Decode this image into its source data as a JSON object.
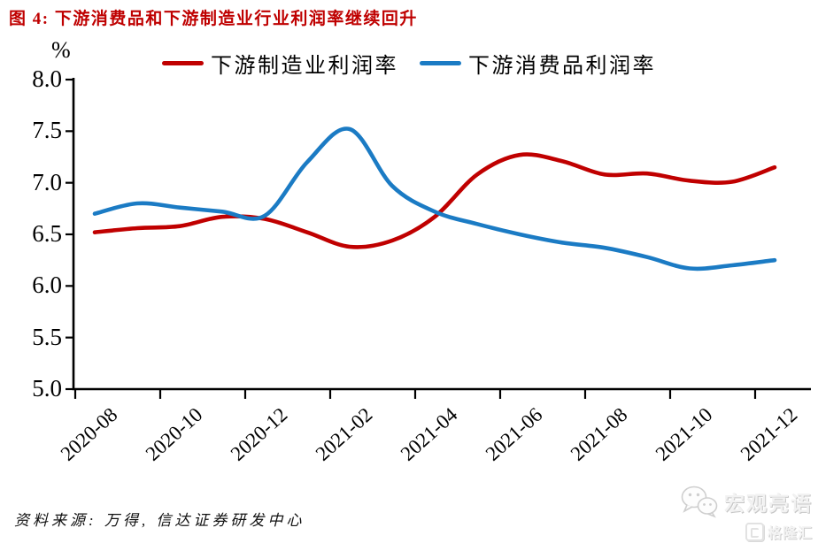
{
  "title": "图 4: 下游消费品和下游制造业行业利润率继续回升",
  "source_note": "资料来源: 万得, 信达证券研发中心",
  "watermark": {
    "brand": "宏观亮语",
    "site": "格隆汇"
  },
  "chart_data": {
    "type": "line",
    "title": "下游消费品和下游制造业行业利润率继续回升",
    "unit": "%",
    "xlabel": "",
    "ylabel": "%",
    "ylim": [
      5.0,
      8.0
    ],
    "grid": false,
    "legend_position": "top",
    "y_tick_labels": [
      "5.0",
      "5.5",
      "6.0",
      "6.5",
      "7.0",
      "7.5",
      "8.0"
    ],
    "x_tick_labels": [
      "2020-08",
      "2020-10",
      "2020-12",
      "2021-02",
      "2021-04",
      "2021-06",
      "2021-08",
      "2021-10",
      "2021-12"
    ],
    "categories": [
      "2020-08",
      "2020-09",
      "2020-10",
      "2020-11",
      "2020-12",
      "2021-01",
      "2021-02",
      "2021-03",
      "2021-04",
      "2021-05",
      "2021-06",
      "2021-07",
      "2021-08",
      "2021-09",
      "2021-10",
      "2021-11",
      "2021-12"
    ],
    "series": [
      {
        "name": "下游制造业利润率",
        "color": "#c00000",
        "values": [
          6.52,
          6.56,
          6.58,
          6.67,
          6.65,
          6.52,
          6.38,
          6.44,
          6.67,
          7.08,
          7.27,
          7.21,
          7.08,
          7.09,
          7.02,
          7.01,
          7.15
        ]
      },
      {
        "name": "下游消费品利润率",
        "color": "#1b7bc4",
        "values": [
          6.7,
          6.8,
          6.76,
          6.72,
          6.68,
          7.2,
          7.52,
          6.97,
          6.72,
          6.6,
          6.5,
          6.42,
          6.37,
          6.28,
          6.17,
          6.2,
          6.25
        ]
      }
    ]
  }
}
